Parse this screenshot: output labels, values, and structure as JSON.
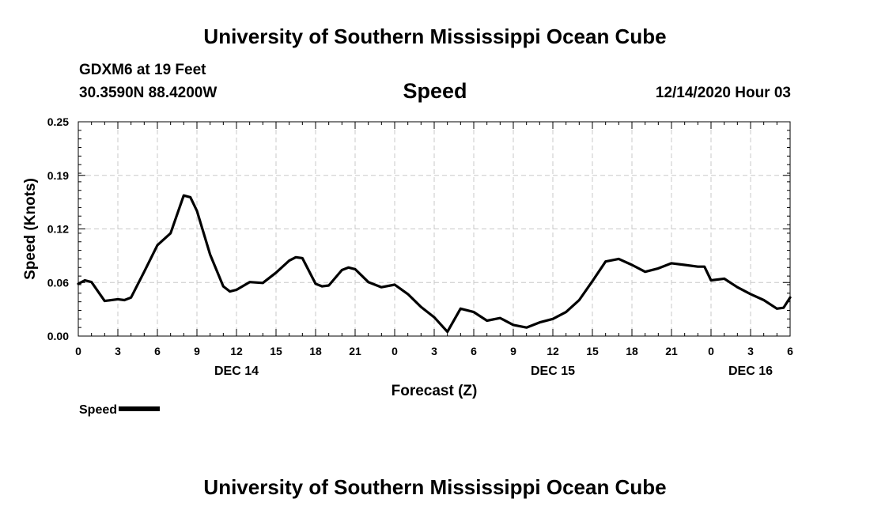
{
  "header": {
    "title": "University of Southern Mississippi Ocean Cube",
    "station": "GDXM6 at 19 Feet",
    "coordinates": "30.3590N 88.4200W",
    "timestamp": "12/14/2020 Hour 03"
  },
  "footer": {
    "title": "University of Southern Mississippi Ocean Cube"
  },
  "legend": {
    "label": "Speed"
  },
  "colors": {
    "line": "#000000",
    "grid": "#c8c8c8"
  },
  "chart_data": {
    "type": "line",
    "title": "Speed",
    "xlabel": "Forecast (Z)",
    "ylabel": "Speed (Knots)",
    "xlim": [
      0,
      54
    ],
    "ylim": [
      0.0,
      0.25
    ],
    "yticks": [
      "0.00",
      "0.06",
      "0.12",
      "0.19",
      "0.25"
    ],
    "ytick_values": [
      0.0,
      0.0625,
      0.125,
      0.1875,
      0.25
    ],
    "xticks": [
      0,
      3,
      6,
      9,
      12,
      15,
      18,
      21,
      24,
      27,
      30,
      33,
      36,
      39,
      42,
      45,
      48,
      51,
      54
    ],
    "xtick_labels": [
      "0",
      "3",
      "6",
      "9",
      "12",
      "15",
      "18",
      "21",
      "0",
      "3",
      "6",
      "9",
      "12",
      "15",
      "18",
      "21",
      "0",
      "3",
      "6"
    ],
    "date_labels": [
      {
        "x": 12,
        "label": "DEC 14"
      },
      {
        "x": 36,
        "label": "DEC 15"
      },
      {
        "x": 51,
        "label": "DEC 16"
      }
    ],
    "grid": true,
    "legend_position": "bottom-left",
    "series": [
      {
        "name": "Speed",
        "x": [
          0,
          0.5,
          1,
          2,
          3,
          3.5,
          4,
          5,
          6,
          7,
          8,
          8.5,
          9,
          10,
          11,
          11.5,
          12,
          13,
          14,
          15,
          16,
          16.5,
          17,
          18,
          18.5,
          19,
          20,
          20.5,
          21,
          22,
          23,
          24,
          25,
          26,
          27,
          28,
          29,
          30,
          31,
          32,
          33,
          34,
          35,
          36,
          37,
          38,
          39,
          40,
          41,
          42,
          43,
          44,
          45,
          46,
          47,
          47.5,
          48,
          49,
          50,
          51,
          52,
          53,
          53.5,
          54
        ],
        "y": [
          0.061,
          0.065,
          0.063,
          0.041,
          0.043,
          0.042,
          0.045,
          0.075,
          0.106,
          0.12,
          0.164,
          0.162,
          0.146,
          0.095,
          0.058,
          0.052,
          0.054,
          0.063,
          0.062,
          0.074,
          0.088,
          0.092,
          0.091,
          0.061,
          0.058,
          0.059,
          0.077,
          0.08,
          0.078,
          0.063,
          0.057,
          0.06,
          0.049,
          0.034,
          0.022,
          0.005,
          0.032,
          0.028,
          0.018,
          0.021,
          0.013,
          0.01,
          0.016,
          0.02,
          0.028,
          0.042,
          0.064,
          0.087,
          0.09,
          0.083,
          0.075,
          0.079,
          0.085,
          0.083,
          0.081,
          0.081,
          0.065,
          0.067,
          0.057,
          0.049,
          0.042,
          0.032,
          0.033,
          0.045
        ]
      }
    ]
  }
}
